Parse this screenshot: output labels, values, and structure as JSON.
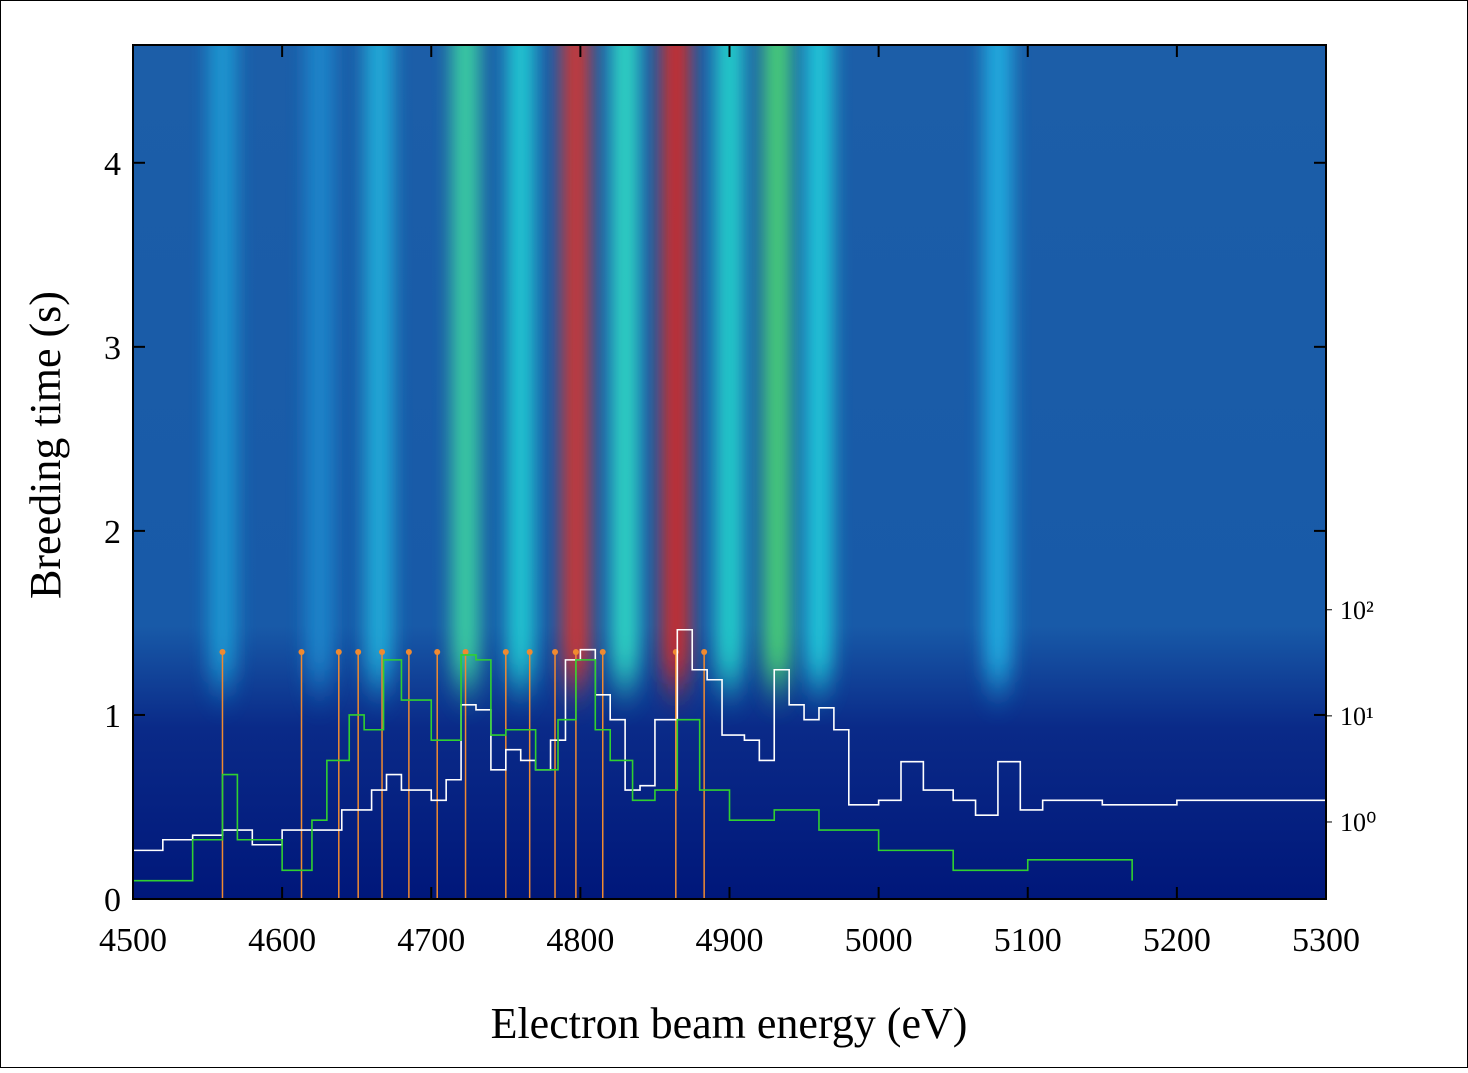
{
  "chart_data": {
    "type": "heatmap",
    "x_label": "Electron beam energy (eV)",
    "y_label": "Breeding time (s)",
    "xlim": [
      4500,
      5300
    ],
    "xticks": [
      4500,
      4600,
      4700,
      4800,
      4900,
      5000,
      5100,
      5200,
      5300
    ],
    "ylim": [
      0,
      4.64
    ],
    "yticks": [
      0,
      1,
      2,
      3,
      4
    ],
    "y2lim": [
      0.188,
      21000000
    ],
    "y2scale": "log",
    "y2ticks": [
      {
        "value": 1,
        "label": "10⁰"
      },
      {
        "value": 10,
        "label": "10¹"
      },
      {
        "value": 100,
        "label": "10²"
      }
    ],
    "ridges": {
      "x": [
        4560,
        4625,
        4665,
        4723,
        4760,
        4797,
        4830,
        4864,
        4900,
        4932,
        4960,
        5080
      ],
      "colors": [
        "#1aa0d8",
        "#1a8cd0",
        "#22b8e0",
        "#40e0a0",
        "#20d8d8",
        "#e83020",
        "#30e8c8",
        "#e82818",
        "#28e0d0",
        "#50e070",
        "#22d8e0",
        "#20b8e8"
      ]
    },
    "resonances": {
      "x": [
        4560,
        4613,
        4638,
        4651,
        4667,
        4685,
        4704,
        4723,
        4750,
        4766,
        4783,
        4797,
        4815,
        4864,
        4883
      ],
      "value": 40,
      "color": "#f08a30"
    },
    "series": [
      {
        "color": "#ffffff",
        "axis": "y2",
        "x": [
          4500,
          4520,
          4540,
          4560,
          4580,
          4600,
          4620,
          4640,
          4660,
          4670,
          4680,
          4700,
          4710,
          4720,
          4730,
          4740,
          4750,
          4760,
          4770,
          4780,
          4790,
          4800,
          4810,
          4820,
          4830,
          4840,
          4850,
          4865,
          4875,
          4885,
          4895,
          4910,
          4920,
          4930,
          4940,
          4950,
          4960,
          4970,
          4980,
          5000,
          5015,
          5030,
          5050,
          5065,
          5080,
          5095,
          5110,
          5150,
          5200,
          5250,
          5300
        ],
        "values": [
          0.54,
          0.68,
          0.75,
          0.84,
          0.61,
          0.84,
          0.84,
          1.3,
          2.0,
          2.8,
          2.0,
          1.6,
          2.5,
          12.7,
          11.4,
          3.1,
          4.8,
          3.8,
          3.1,
          5.9,
          33.7,
          42,
          15.8,
          9.2,
          2.0,
          2.2,
          9.2,
          64.8,
          27.2,
          21.9,
          6.6,
          5.9,
          3.8,
          27.2,
          12.7,
          9.2,
          11.9,
          7.4,
          1.45,
          1.6,
          3.7,
          2.0,
          1.6,
          1.16,
          3.7,
          1.3,
          1.6,
          1.45,
          1.6,
          1.6,
          1.55
        ]
      },
      {
        "color": "#30d030",
        "axis": "y2",
        "x": [
          4500,
          4540,
          4560,
          4570,
          4600,
          4620,
          4630,
          4645,
          4655,
          4668,
          4680,
          4700,
          4710,
          4720,
          4730,
          4740,
          4750,
          4770,
          4785,
          4797,
          4810,
          4820,
          4835,
          4850,
          4865,
          4880,
          4900,
          4930,
          4960,
          5000,
          5050,
          5100,
          5170
        ],
        "values": [
          0.28,
          0.68,
          2.8,
          0.68,
          0.35,
          1.04,
          3.8,
          10.2,
          7.4,
          33.7,
          14.1,
          5.9,
          5.9,
          37.5,
          33.7,
          6.6,
          7.4,
          3.1,
          9.2,
          33.7,
          7.4,
          3.8,
          1.6,
          2.0,
          9.2,
          2.0,
          1.04,
          1.3,
          0.84,
          0.54,
          0.35,
          0.44,
          0.28
        ]
      }
    ]
  }
}
